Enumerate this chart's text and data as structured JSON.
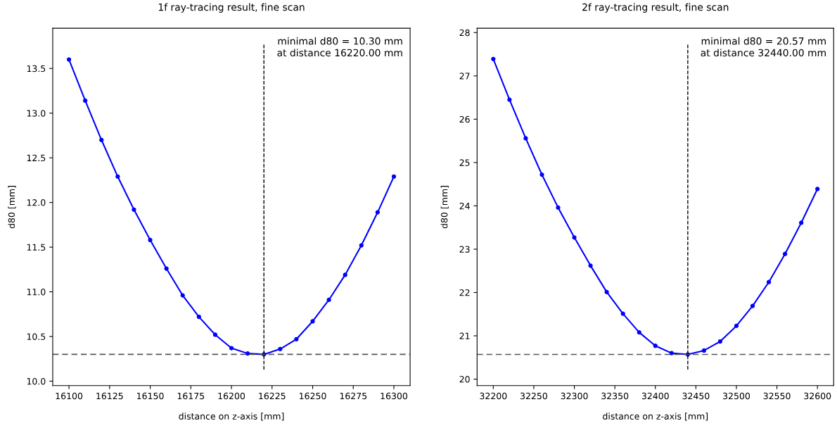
{
  "chart_data": [
    {
      "type": "line",
      "title": "1f ray-tracing result, fine scan",
      "xlabel": "distance on z-axis [mm]",
      "ylabel": "d80 [mm]",
      "x": [
        16100,
        16110,
        16120,
        16130,
        16140,
        16150,
        16160,
        16170,
        16180,
        16190,
        16200,
        16210,
        16220,
        16230,
        16240,
        16250,
        16260,
        16270,
        16280,
        16290,
        16300
      ],
      "series": [
        {
          "color": "#0000ff",
          "values": [
            13.6,
            13.14,
            12.7,
            12.29,
            11.92,
            11.58,
            11.26,
            10.96,
            10.72,
            10.52,
            10.37,
            10.31,
            10.3,
            10.36,
            10.47,
            10.67,
            10.91,
            11.19,
            11.52,
            11.89,
            12.29
          ]
        }
      ],
      "marker": "circle",
      "line_style": "solid",
      "grid": false,
      "legend": false,
      "xlim": [
        16090,
        16310
      ],
      "ylim": [
        9.95,
        13.95
      ],
      "xticks": [
        16100,
        16125,
        16150,
        16175,
        16200,
        16225,
        16250,
        16275,
        16300
      ],
      "yticks": [
        {
          "value": 10,
          "label": "10.0"
        },
        10.5,
        {
          "value": 11,
          "label": "11.0"
        },
        11.5,
        {
          "value": 12,
          "label": "12.0"
        },
        12.5,
        {
          "value": 13,
          "label": "13.0"
        },
        13.5
      ],
      "ref_lines": [
        {
          "axis": "y",
          "value": 10.3,
          "color": "#555555",
          "line_style": "dashed"
        },
        {
          "axis": "x",
          "value": 16220,
          "color": "#000000",
          "line_style": "dashed"
        }
      ],
      "annotations": [
        "minimal d80 = 10.30 mm\nat distance 16220.00 mm"
      ]
    },
    {
      "type": "line",
      "title": "2f ray-tracing result, fine scan",
      "xlabel": "distance on z-axis [mm]",
      "ylabel": "d80 [mm]",
      "x": [
        32200,
        32220,
        32240,
        32260,
        32280,
        32300,
        32320,
        32340,
        32360,
        32380,
        32400,
        32420,
        32440,
        32460,
        32480,
        32500,
        32520,
        32540,
        32560,
        32580,
        32600
      ],
      "series": [
        {
          "color": "#0000ff",
          "values": [
            27.39,
            26.45,
            25.56,
            24.72,
            23.96,
            23.27,
            22.62,
            22.01,
            21.51,
            21.08,
            20.77,
            20.6,
            20.57,
            20.66,
            20.87,
            21.23,
            21.69,
            22.24,
            22.89,
            23.61,
            24.39
          ]
        }
      ],
      "marker": "circle",
      "line_style": "solid",
      "grid": false,
      "legend": false,
      "xlim": [
        32180,
        32620
      ],
      "ylim": [
        19.85,
        28.1
      ],
      "xticks": [
        32200,
        32250,
        32300,
        32350,
        32400,
        32450,
        32500,
        32550,
        32600
      ],
      "yticks": [
        20,
        21,
        22,
        23,
        24,
        25,
        26,
        27,
        28
      ],
      "ref_lines": [
        {
          "axis": "y",
          "value": 20.57,
          "color": "#555555",
          "line_style": "dashed"
        },
        {
          "axis": "x",
          "value": 32440,
          "color": "#000000",
          "line_style": "dashed"
        }
      ],
      "annotations": [
        "minimal d80 = 20.57 mm\nat distance 32440.00 mm"
      ]
    }
  ]
}
